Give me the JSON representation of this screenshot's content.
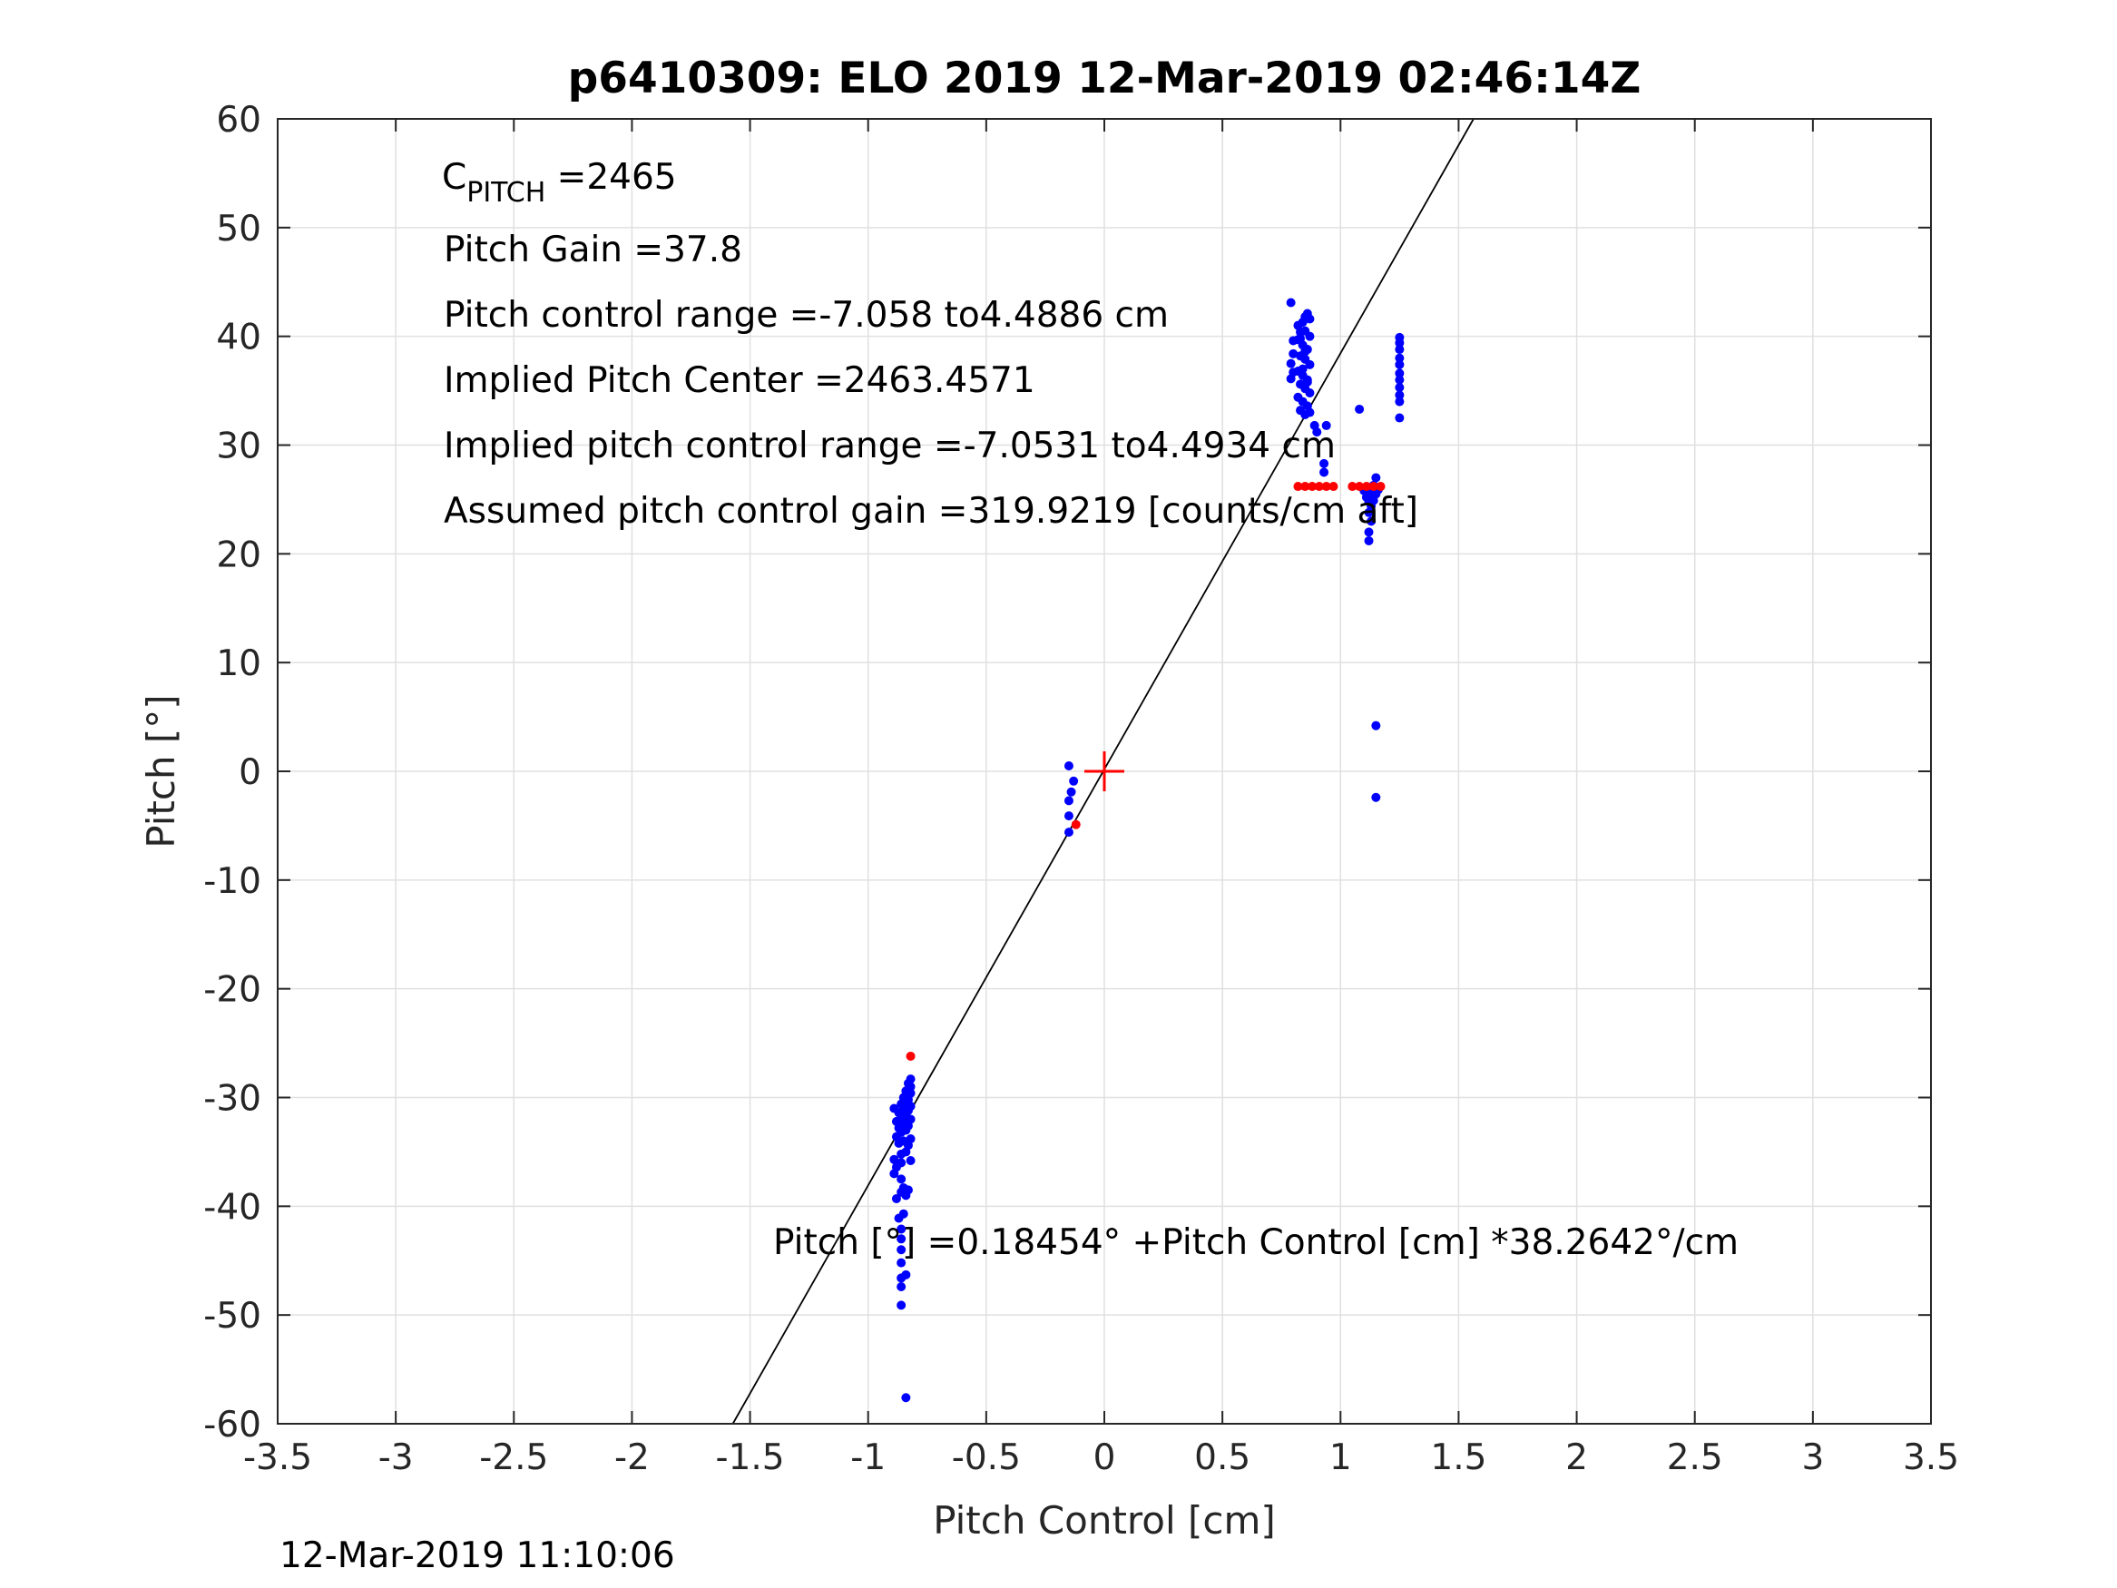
{
  "chart_data": {
    "type": "scatter",
    "title": "p6410309: ELO 2019 12-Mar-2019 02:46:14Z",
    "xlabel": "Pitch Control [cm]",
    "ylabel": "Pitch [°]",
    "xlim": [
      -3.5,
      3.5
    ],
    "ylim": [
      -60,
      60
    ],
    "xticks": [
      -3.5,
      -3,
      -2.5,
      -2,
      -1.5,
      -1,
      -0.5,
      0,
      0.5,
      1,
      1.5,
      2,
      2.5,
      3,
      3.5
    ],
    "xtick_labels": [
      "-3.5",
      "-3",
      "-2.5",
      "-2",
      "-1.5",
      "-1",
      "-0.5",
      "0",
      "0.5",
      "1",
      "1.5",
      "2",
      "2.5",
      "3",
      "3.5"
    ],
    "yticks": [
      -60,
      -50,
      -40,
      -30,
      -20,
      -10,
      0,
      10,
      20,
      30,
      40,
      50,
      60
    ],
    "ytick_labels": [
      "-60",
      "-50",
      "-40",
      "-30",
      "-20",
      "-10",
      "0",
      "10",
      "20",
      "30",
      "40",
      "50",
      "60"
    ],
    "grid": true,
    "colors": {
      "blue_points": "#0000ff",
      "red_points": "#ff0000",
      "fit_line": "#000000",
      "center_marker": "#ff0000",
      "grid": "#e0e0e0",
      "axes": "#262626"
    },
    "fit_line": {
      "intercept": 0.18454,
      "slope": 38.2642
    },
    "center_marker": {
      "x": 0,
      "y": 0
    },
    "series": [
      {
        "color": "blue",
        "points": [
          [
            -0.84,
            -57.6
          ],
          [
            -0.86,
            -49.1
          ],
          [
            -0.86,
            -47.4
          ],
          [
            -0.86,
            -46.6
          ],
          [
            -0.84,
            -46.3
          ],
          [
            -0.86,
            -45.2
          ],
          [
            -0.86,
            -44.0
          ],
          [
            -0.86,
            -43.0
          ],
          [
            -0.86,
            -42.1
          ],
          [
            -0.87,
            -41.1
          ],
          [
            -0.85,
            -40.7
          ],
          [
            -0.88,
            -39.3
          ],
          [
            -0.84,
            -39.0
          ],
          [
            -0.86,
            -38.7
          ],
          [
            -0.83,
            -38.5
          ],
          [
            -0.85,
            -38.3
          ],
          [
            -0.86,
            -37.5
          ],
          [
            -0.89,
            -37.0
          ],
          [
            -0.88,
            -36.4
          ],
          [
            -0.86,
            -36.0
          ],
          [
            -0.89,
            -35.7
          ],
          [
            -0.82,
            -35.8
          ],
          [
            -0.86,
            -35.2
          ],
          [
            -0.84,
            -35.0
          ],
          [
            -0.83,
            -34.4
          ],
          [
            -0.87,
            -34.2
          ],
          [
            -0.85,
            -34.0
          ],
          [
            -0.88,
            -33.6
          ],
          [
            -0.82,
            -33.8
          ],
          [
            -0.86,
            -33.2
          ],
          [
            -0.84,
            -33.0
          ],
          [
            -0.87,
            -32.8
          ],
          [
            -0.83,
            -32.6
          ],
          [
            -0.85,
            -32.4
          ],
          [
            -0.88,
            -32.2
          ],
          [
            -0.82,
            -32.0
          ],
          [
            -0.86,
            -31.8
          ],
          [
            -0.84,
            -31.6
          ],
          [
            -0.87,
            -31.4
          ],
          [
            -0.83,
            -31.2
          ],
          [
            -0.85,
            -31.0
          ],
          [
            -0.89,
            -31.0
          ],
          [
            -0.82,
            -30.8
          ],
          [
            -0.86,
            -30.6
          ],
          [
            -0.84,
            -30.4
          ],
          [
            -0.83,
            -30.2
          ],
          [
            -0.85,
            -30.0
          ],
          [
            -0.82,
            -29.6
          ],
          [
            -0.84,
            -29.4
          ],
          [
            -0.82,
            -29.0
          ],
          [
            -0.83,
            -28.7
          ],
          [
            -0.82,
            -28.3
          ],
          [
            -0.15,
            0.5
          ],
          [
            -0.13,
            -0.9
          ],
          [
            -0.14,
            -1.9
          ],
          [
            -0.15,
            -2.7
          ],
          [
            -0.15,
            -4.1
          ],
          [
            -0.15,
            -5.6
          ],
          [
            0.79,
            43.1
          ],
          [
            0.8,
            39.6
          ],
          [
            0.8,
            38.4
          ],
          [
            0.79,
            37.5
          ],
          [
            0.8,
            36.7
          ],
          [
            0.79,
            36.1
          ],
          [
            0.82,
            41.0
          ],
          [
            0.83,
            40.4
          ],
          [
            0.84,
            41.3
          ],
          [
            0.85,
            41.8
          ],
          [
            0.86,
            42.1
          ],
          [
            0.87,
            41.6
          ],
          [
            0.82,
            39.7
          ],
          [
            0.84,
            39.2
          ],
          [
            0.86,
            38.8
          ],
          [
            0.83,
            38.2
          ],
          [
            0.85,
            37.9
          ],
          [
            0.87,
            37.4
          ],
          [
            0.82,
            36.8
          ],
          [
            0.84,
            36.4
          ],
          [
            0.86,
            36.0
          ],
          [
            0.83,
            35.6
          ],
          [
            0.85,
            35.2
          ],
          [
            0.87,
            34.8
          ],
          [
            0.82,
            34.4
          ],
          [
            0.84,
            34.0
          ],
          [
            0.86,
            33.6
          ],
          [
            0.83,
            33.2
          ],
          [
            0.85,
            32.8
          ],
          [
            0.87,
            33.0
          ],
          [
            0.85,
            40.5
          ],
          [
            0.87,
            40.0
          ],
          [
            0.84,
            37.0
          ],
          [
            0.86,
            35.8
          ],
          [
            0.85,
            38.6
          ],
          [
            0.83,
            39.8
          ],
          [
            0.89,
            31.8
          ],
          [
            0.9,
            31.2
          ],
          [
            0.94,
            31.8
          ],
          [
            0.93,
            28.3
          ],
          [
            0.93,
            27.5
          ],
          [
            1.08,
            33.3
          ],
          [
            1.1,
            25.8
          ],
          [
            1.11,
            25.2
          ],
          [
            1.12,
            24.8
          ],
          [
            1.13,
            24.4
          ],
          [
            1.14,
            24.9
          ],
          [
            1.15,
            25.5
          ],
          [
            1.12,
            23.8
          ],
          [
            1.13,
            23.0
          ],
          [
            1.12,
            22.0
          ],
          [
            1.12,
            21.2
          ],
          [
            1.14,
            26.3
          ],
          [
            1.15,
            27.0
          ],
          [
            1.1,
            26.0
          ],
          [
            1.16,
            25.9
          ],
          [
            1.13,
            25.6
          ],
          [
            1.25,
            39.9
          ],
          [
            1.25,
            39.4
          ],
          [
            1.25,
            38.8
          ],
          [
            1.25,
            38.0
          ],
          [
            1.25,
            37.4
          ],
          [
            1.25,
            36.6
          ],
          [
            1.25,
            36.0
          ],
          [
            1.25,
            35.3
          ],
          [
            1.25,
            34.6
          ],
          [
            1.25,
            34.0
          ],
          [
            1.25,
            32.5
          ],
          [
            1.15,
            4.2
          ],
          [
            1.15,
            -2.4
          ]
        ]
      },
      {
        "color": "red",
        "points": [
          [
            -0.82,
            -26.2
          ],
          [
            -0.12,
            -4.9
          ],
          [
            0.82,
            26.2
          ],
          [
            0.85,
            26.2
          ],
          [
            0.88,
            26.2
          ],
          [
            0.91,
            26.2
          ],
          [
            0.94,
            26.2
          ],
          [
            0.97,
            26.2
          ],
          [
            1.05,
            26.2
          ],
          [
            1.08,
            26.2
          ],
          [
            1.11,
            26.2
          ],
          [
            1.14,
            26.2
          ],
          [
            1.17,
            26.2
          ]
        ]
      }
    ],
    "annotations": {
      "c_pitch_main": "C",
      "c_pitch_sub": "PITCH",
      "c_pitch_value": " =2465",
      "pitch_gain": "Pitch Gain =37.8",
      "control_range": "Pitch control range =-7.058 to4.4886 cm",
      "implied_center": "Implied Pitch Center =2463.4571",
      "implied_range": "Implied pitch control range =-7.0531 to4.4934 cm",
      "assumed_gain": "Assumed pitch control gain =319.9219 [counts/cm aft]",
      "fit_equation": "Pitch [°] =0.18454° +Pitch Control [cm] *38.2642°/cm"
    },
    "timestamp": "12-Mar-2019 11:10:06"
  }
}
